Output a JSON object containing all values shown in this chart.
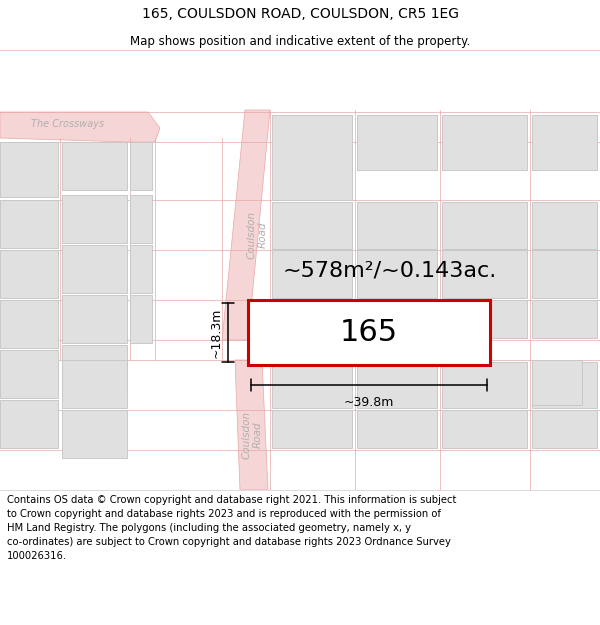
{
  "title": "165, COULSDON ROAD, COULSDON, CR5 1EG",
  "subtitle": "Map shows position and indicative extent of the property.",
  "footer": "Contains OS data © Crown copyright and database right 2021. This information is subject\nto Crown copyright and database rights 2023 and is reproduced with the permission of\nHM Land Registry. The polygons (including the associated geometry, namely x, y\nco-ordinates) are subject to Crown copyright and database rights 2023 Ordnance Survey\n100026316.",
  "map_bg": "#ffffff",
  "road_fill": "#f5d5d5",
  "road_edge": "#e8a8a8",
  "block_fill": "#e0e0e0",
  "block_edge": "#c8c8c8",
  "red": "#cc0000",
  "white": "#ffffff",
  "text_color": "#111111",
  "label_gray": "#b0b0b0",
  "area_text": "~578m²/~0.143ac.",
  "prop_label": "165",
  "width_label": "~39.8m",
  "height_label": "~18.3m",
  "title_fontsize": 10,
  "subtitle_fontsize": 8.5,
  "area_fontsize": 16,
  "prop_fontsize": 22,
  "dim_fontsize": 9,
  "road_label_fontsize": 7.5,
  "footer_fontsize": 7.2
}
